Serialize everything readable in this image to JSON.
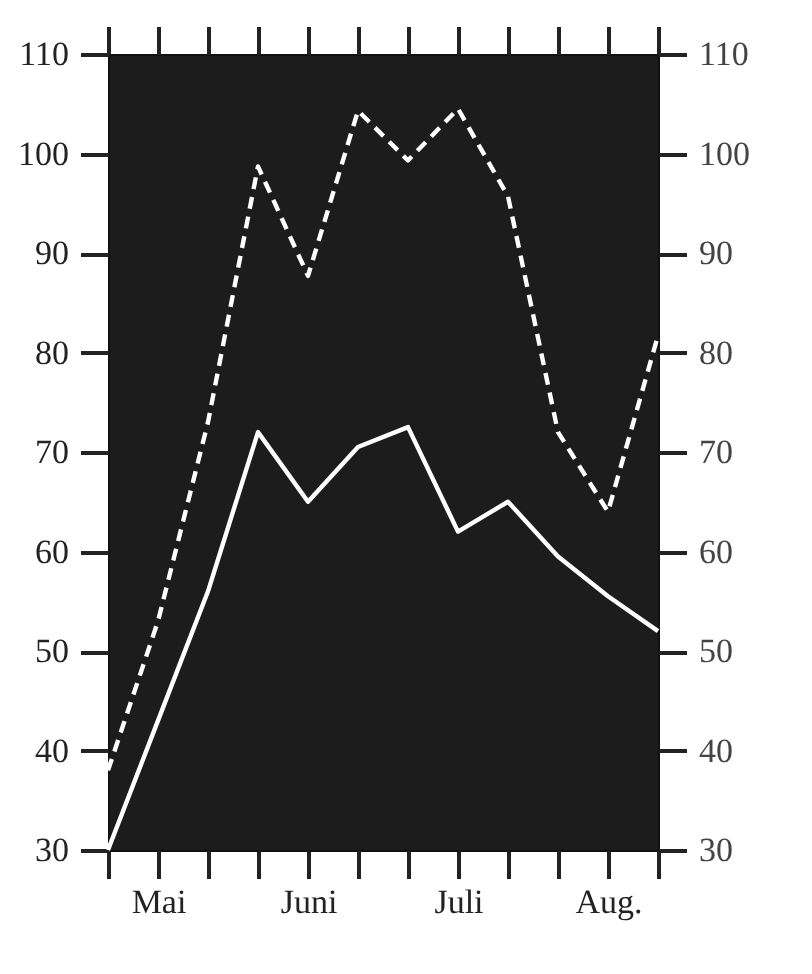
{
  "chart_data": {
    "type": "line",
    "categories": [
      null,
      "Mai",
      null,
      null,
      "Juni",
      null,
      null,
      "Juli",
      null,
      null,
      "Aug.",
      null
    ],
    "series": [
      {
        "color": "#ffffff",
        "line_style": "dashed",
        "values": [
          38,
          53,
          73,
          98.7,
          87.7,
          104.3,
          99.3,
          104.5,
          95.7,
          72,
          64,
          81.7
        ]
      },
      {
        "color": "#ffffff",
        "line_style": "solid",
        "values": [
          30,
          43,
          56,
          72,
          65,
          70.5,
          72.5,
          62,
          65,
          59.5,
          55.5,
          52
        ]
      }
    ],
    "ylim": [
      30,
      110
    ],
    "yticks": [
      30,
      40,
      50,
      60,
      70,
      80,
      90,
      100,
      110
    ],
    "y2lim": [
      30,
      110
    ],
    "y2ticks": [
      30,
      40,
      50,
      60,
      70,
      80,
      90,
      100,
      110
    ],
    "grid": false,
    "marker": "none"
  }
}
